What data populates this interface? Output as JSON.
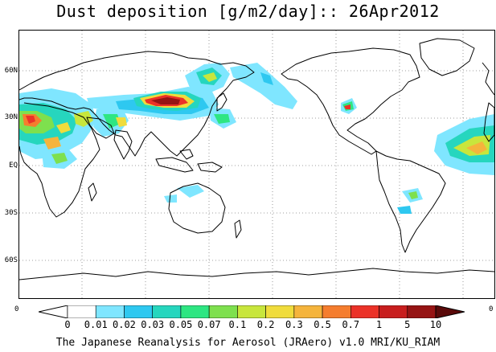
{
  "title": "Dust deposition [g/m2/day]:: 26Apr2012",
  "footer": "The Japanese Reanalysis for Aerosol (JRAero) v1.0 MRI/KU_RIAM",
  "lat_labels": [
    "60N",
    "30N",
    "EQ",
    "30S",
    "60S"
  ],
  "corner_labels": {
    "left": "0",
    "right": "0"
  },
  "colorbar": {
    "ticks": [
      "0",
      "0.01",
      "0.02",
      "0.03",
      "0.05",
      "0.07",
      "0.1",
      "0.2",
      "0.3",
      "0.5",
      "0.7",
      "1",
      "5",
      "10"
    ],
    "colors": [
      "#ffffff",
      "#ffffff",
      "#7fe6ff",
      "#2ec8f0",
      "#26d6be",
      "#2ee682",
      "#7ee04e",
      "#c8e63c",
      "#f0dc3c",
      "#f5b43c",
      "#f57d2e",
      "#eb3228",
      "#c81e1e",
      "#961414",
      "#5a0a0a"
    ]
  },
  "colors": {
    "land_outline": "#000000",
    "grid": "#808080",
    "background": "#ffffff"
  }
}
